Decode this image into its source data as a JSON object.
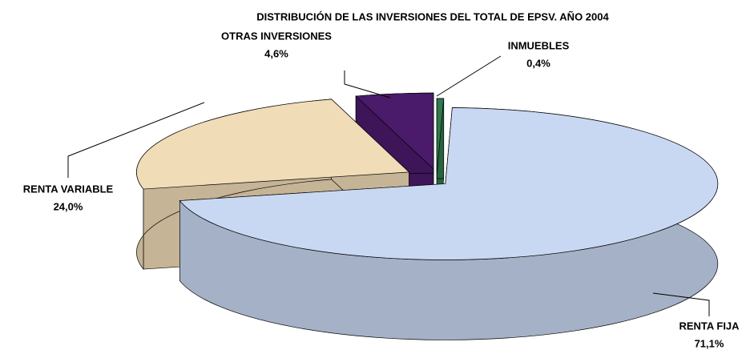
{
  "chart_data": {
    "type": "pie3d",
    "title": "DISTRIBUCIÓN DE LAS INVERSIONES DEL TOTAL DE EPSV. AÑO 2004",
    "categories": [
      "INMUEBLES",
      "RENTA FIJA",
      "RENTA VARIABLE",
      "OTRAS INVERSIONES"
    ],
    "values": [
      0.4,
      71.1,
      24.0,
      4.6
    ],
    "value_labels": [
      "0,4%",
      "71,1%",
      "24,0%",
      "4,6%"
    ],
    "colors": [
      "#2f7a4e",
      "#c9d8f2",
      "#f0dcb6",
      "#4a1a6b"
    ]
  }
}
